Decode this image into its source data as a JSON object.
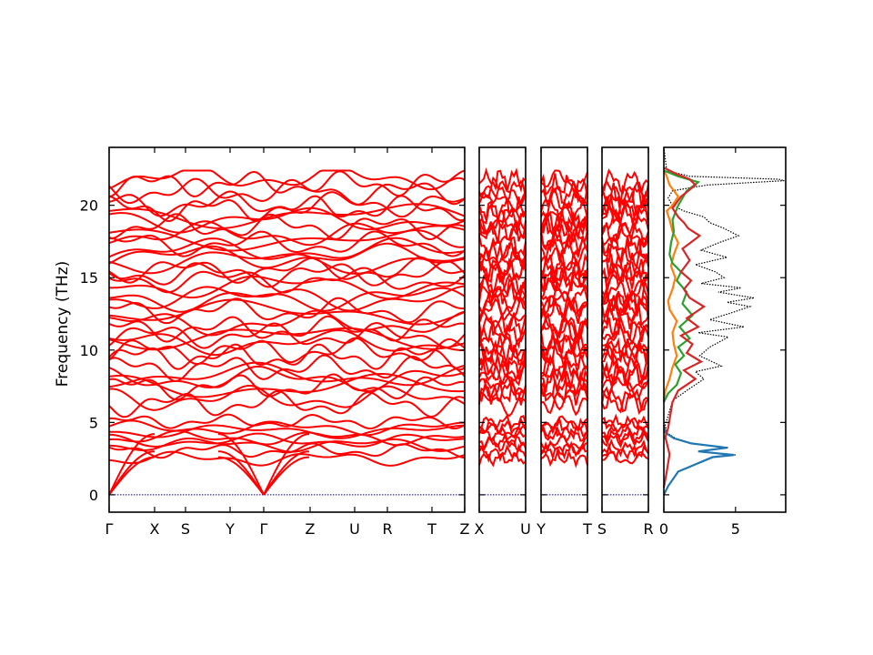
{
  "chart_data": [
    {
      "type": "line",
      "title": "",
      "ylabel": "Frequency (THz)",
      "ylim": [
        -1.2,
        24
      ],
      "yticks": [
        0,
        5,
        10,
        15,
        20
      ],
      "segments": [
        {
          "labels": [
            "Γ",
            "X",
            "S",
            "Y",
            "Γ",
            "Z",
            "U",
            "R",
            "T",
            "Z"
          ]
        },
        {
          "labels": [
            "X",
            "U"
          ]
        },
        {
          "labels": [
            "Y",
            "T"
          ]
        },
        {
          "labels": [
            "S",
            "R"
          ]
        }
      ],
      "series": [
        {
          "color": "#ff0000",
          "role": "phonon bands"
        },
        {
          "color": "#00008b",
          "role": "zero-frequency reference line (dotted)"
        }
      ],
      "acoustic_max_thz": 4.3,
      "optical_band_groups_thz": [
        [
          2.4,
          5.2
        ],
        [
          6.2,
          22.4
        ]
      ],
      "band_gap_thz": [
        5.2,
        6.2
      ]
    },
    {
      "type": "line",
      "xlabel": "",
      "ylabel": "",
      "xlim": [
        0,
        8.5
      ],
      "ylim": [
        -1.2,
        24
      ],
      "xticks": [
        0,
        5
      ],
      "series": [
        {
          "color": "#000000",
          "style": "dotted",
          "role": "total DOS",
          "x": [
            0,
            0.3,
            1.0,
            3.5,
            5.0,
            2.5,
            4.5,
            2.0,
            0.8,
            0.2,
            0.1,
            0.6,
            1.6,
            2.8,
            2.2,
            4.0,
            2.5,
            3.2,
            4.5,
            2.4,
            5.6,
            3.2,
            4.8,
            6.0,
            4.4,
            6.3,
            3.8,
            5.4,
            2.6,
            4.2,
            3.6,
            2.2,
            4.4,
            2.6,
            3.8,
            5.2,
            4.2,
            3.2,
            2.8,
            1.4,
            0.6,
            0.3,
            0.6,
            3.0,
            8.4,
            8.0,
            1.8,
            0.2,
            0
          ],
          "y": [
            0,
            0.6,
            1.6,
            2.6,
            2.75,
            3.0,
            3.25,
            3.55,
            3.9,
            4.3,
            4.8,
            6.5,
            7.2,
            8.0,
            8.5,
            8.9,
            9.6,
            10.2,
            10.9,
            11.2,
            11.6,
            12.1,
            12.6,
            13.0,
            13.3,
            13.6,
            14.0,
            14.3,
            14.6,
            15.0,
            15.4,
            15.9,
            16.4,
            16.9,
            17.4,
            17.9,
            18.4,
            18.8,
            19.2,
            19.6,
            20.0,
            20.5,
            21.0,
            21.4,
            21.7,
            21.8,
            22.0,
            22.4,
            24
          ]
        },
        {
          "color": "#1f77b4",
          "role": "projected DOS (acoustic region)",
          "x": [
            0,
            0.3,
            1.0,
            3.4,
            4.9,
            2.4,
            4.4,
            1.9,
            0.7,
            0.1,
            0
          ],
          "y": [
            0,
            0.6,
            1.6,
            2.6,
            2.75,
            3.0,
            3.25,
            3.55,
            3.9,
            4.3,
            4.8
          ]
        },
        {
          "color": "#ff7f0e",
          "role": "projected DOS",
          "x": [
            0,
            0.1,
            0.4,
            0.6,
            0.9,
            0.7,
            0.6,
            0.9,
            0.4,
            0.3,
            0.6,
            0.8,
            0.5,
            0.7,
            1.0,
            0.6,
            0.4,
            0.2,
            0.6,
            1.0,
            0.4,
            0.2,
            0
          ],
          "y": [
            6.4,
            7.2,
            8.0,
            8.8,
            9.6,
            10.4,
            11.2,
            12.0,
            12.8,
            13.4,
            14.2,
            15.0,
            15.8,
            16.6,
            17.4,
            18.2,
            19.0,
            19.6,
            20.0,
            20.6,
            21.4,
            22.0,
            22.4
          ]
        },
        {
          "color": "#2ca02c",
          "role": "projected DOS",
          "x": [
            0,
            0.3,
            0.9,
            1.2,
            0.8,
            1.4,
            1.0,
            1.8,
            1.1,
            2.0,
            1.3,
            1.6,
            0.9,
            1.2,
            0.6,
            0.4,
            0.5,
            0.7,
            0.6,
            1.0,
            1.6,
            2.4,
            1.0,
            0
          ],
          "y": [
            6.4,
            7.0,
            7.6,
            8.4,
            9.0,
            9.6,
            10.2,
            10.8,
            11.6,
            12.4,
            13.2,
            14.0,
            14.8,
            15.4,
            16.0,
            16.6,
            17.4,
            18.2,
            19.0,
            20.0,
            21.0,
            21.6,
            22.0,
            22.4
          ]
        },
        {
          "color": "#d62728",
          "role": "projected DOS",
          "x": [
            0,
            0.2,
            0.4,
            0.1,
            0.3,
            0.6,
            1.0,
            2.2,
            1.4,
            2.6,
            1.6,
            2.0,
            1.2,
            2.4,
            1.6,
            2.8,
            1.8,
            1.4,
            1.9,
            1.2,
            1.8,
            1.3,
            2.5,
            1.7,
            1.4,
            1.0,
            0.6,
            1.2,
            2.2,
            1.8,
            0.8,
            0
          ],
          "y": [
            0.5,
            1.6,
            2.8,
            4.0,
            4.6,
            6.4,
            7.2,
            8.0,
            8.6,
            9.2,
            9.8,
            10.4,
            11.0,
            11.6,
            12.2,
            13.0,
            13.6,
            14.2,
            14.8,
            15.4,
            16.2,
            17.0,
            17.9,
            18.4,
            18.8,
            19.2,
            19.8,
            20.6,
            21.4,
            21.8,
            22.2,
            22.6
          ]
        }
      ]
    }
  ]
}
